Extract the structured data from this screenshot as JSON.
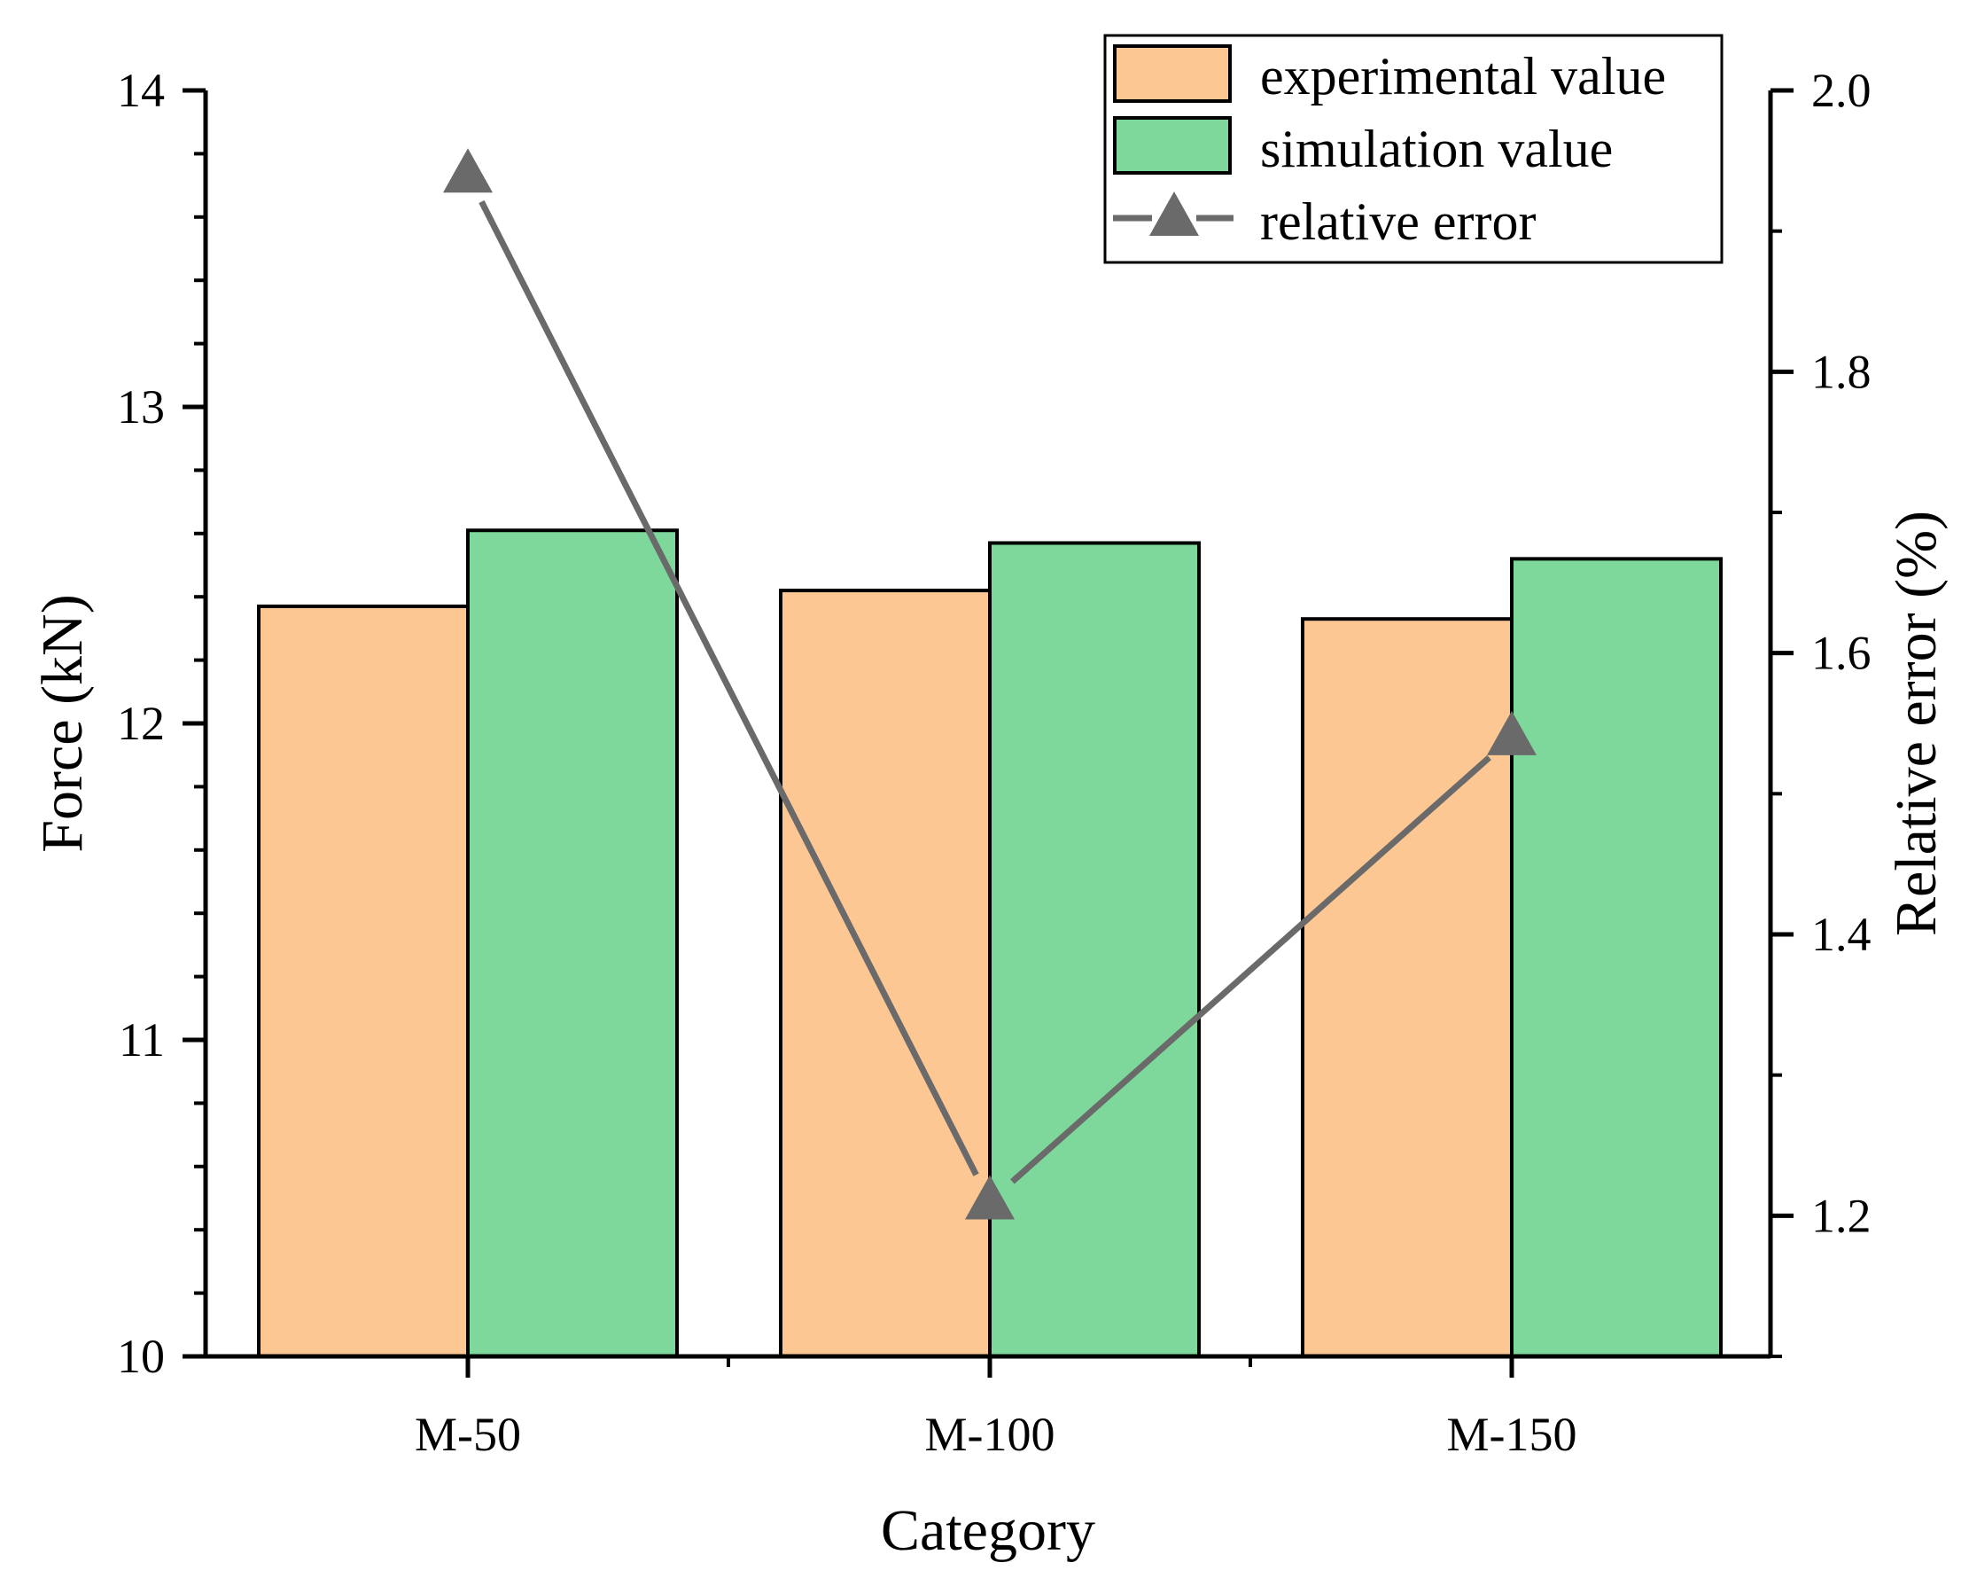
{
  "chart_data": {
    "type": "bar",
    "xlabel": "Category",
    "ylabel": "Force (kN)",
    "y2label": "Relative error (%)",
    "categories": [
      "M-50",
      "M-100",
      "M-150"
    ],
    "ylim": [
      10,
      14
    ],
    "y2lim": [
      1.1,
      2.0
    ],
    "yticks": [
      "10",
      "11",
      "12",
      "13",
      "14"
    ],
    "y2ticks": [
      "1.2",
      "1.4",
      "1.6",
      "1.8",
      "2.0"
    ],
    "series": [
      {
        "name": "experimental value",
        "kind": "bar",
        "axis": "left",
        "values": [
          12.37,
          12.42,
          12.33
        ]
      },
      {
        "name": "simulation value",
        "kind": "bar",
        "axis": "left",
        "values": [
          12.61,
          12.57,
          12.52
        ]
      },
      {
        "name": "relative error",
        "kind": "line",
        "marker": "triangle",
        "axis": "right",
        "values": [
          1.94,
          1.21,
          1.54
        ]
      }
    ],
    "legend_position": "top-right",
    "colors": {
      "experimental": "#FDC794",
      "simulation": "#7FD89B",
      "line": "#6A6A6A",
      "axis": "#000000"
    }
  }
}
